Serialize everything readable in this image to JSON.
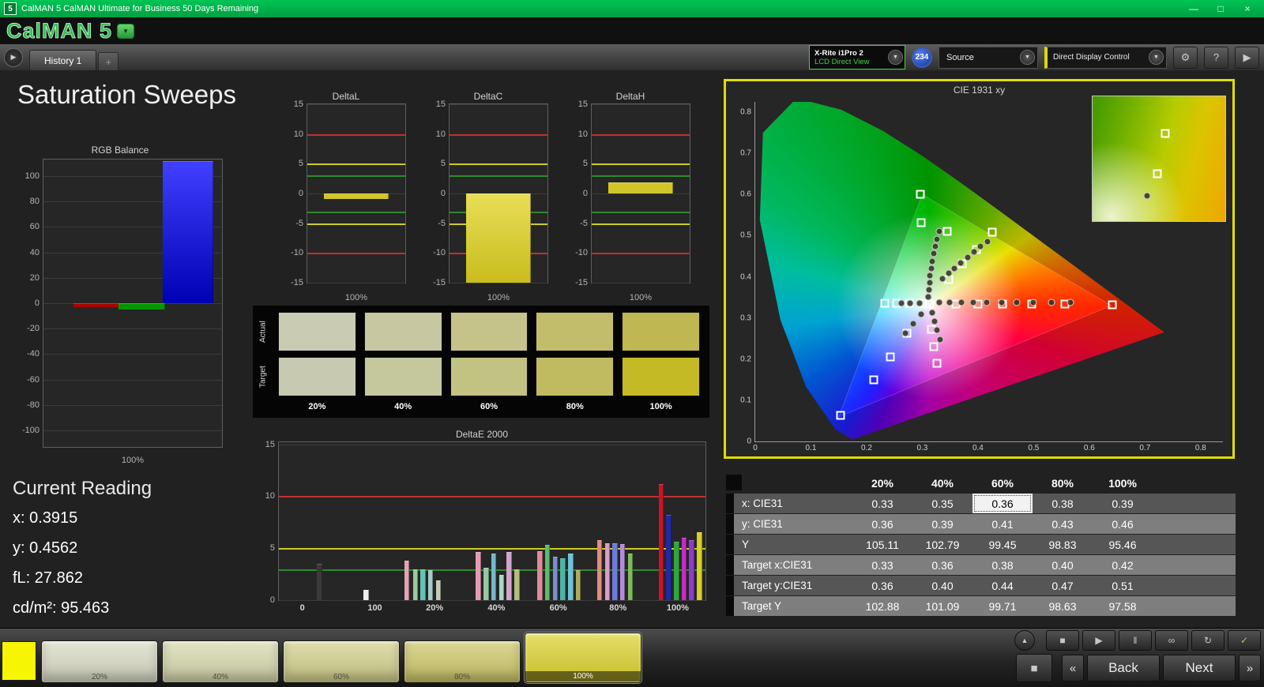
{
  "titlebar": {
    "icon": "5",
    "title": "CalMAN 5 CalMAN Ultimate for Business 50 Days Remaining",
    "minimize": "—",
    "maximize": "□",
    "close": "×"
  },
  "logo": {
    "text": "CalMAN 5",
    "dropdown": "▼"
  },
  "tabbar": {
    "nav_play": "▶",
    "history_tab": "History 1",
    "add_tab": "+",
    "meter": {
      "line1": "X-Rite i1Pro 2",
      "line2": "LCD Direct View",
      "arrow": "▼"
    },
    "badge": "234",
    "source": {
      "label": "Source",
      "arrow": "▼"
    },
    "display_control": {
      "label": "Direct Display Control",
      "arrow": "▼"
    },
    "gear": "⚙",
    "help": "?",
    "advance": "▶"
  },
  "page_title": "Saturation Sweeps",
  "current_reading": {
    "title": "Current Reading",
    "lines": [
      "x: 0.3915",
      "y: 0.4562",
      "fL: 27.862",
      "cd/m²: 95.463"
    ]
  },
  "chart_data": {
    "rgb_balance": {
      "type": "bar",
      "title": "RGB Balance",
      "xlabel": "100%",
      "ylim": [
        -113,
        113
      ],
      "yticks": [
        100,
        80,
        60,
        40,
        20,
        0,
        -20,
        -40,
        -60,
        -80,
        -100
      ],
      "bars": [
        {
          "name": "red",
          "x": 0.3,
          "w": 0.26,
          "v": -3,
          "c": "#aa0000"
        },
        {
          "name": "green",
          "x": 0.55,
          "w": 0.26,
          "v": -5,
          "c": "#009600"
        },
        {
          "name": "blue",
          "x": 0.81,
          "w": 0.28,
          "v": 112,
          "c": "linear-gradient(180deg,#4040ff,#0000b4)"
        }
      ]
    },
    "delta_l": {
      "type": "bar",
      "title": "DeltaL",
      "xlabel": "100%",
      "ylim": [
        -15,
        15
      ],
      "yticks": [
        15,
        10,
        5,
        0,
        -5,
        -10,
        -15
      ],
      "reflines": [
        {
          "v": 10,
          "c": "#c03030"
        },
        {
          "v": 5,
          "c": "#cccc22"
        },
        {
          "v": 3,
          "c": "#2e8b2e"
        },
        {
          "v": -3,
          "c": "#2e8b2e"
        },
        {
          "v": -5,
          "c": "#cccc22"
        },
        {
          "v": -10,
          "c": "#c03030"
        }
      ],
      "bars": [
        {
          "x": 0.5,
          "w": 0.66,
          "v": -0.9,
          "c": "#d2c52a"
        }
      ]
    },
    "delta_c": {
      "type": "bar",
      "title": "DeltaC",
      "xlabel": "100%",
      "ylim": [
        -15,
        15
      ],
      "yticks": [
        15,
        10,
        5,
        0,
        -5,
        -10,
        -15
      ],
      "reflines": [
        {
          "v": 10,
          "c": "#c03030"
        },
        {
          "v": 5,
          "c": "#cccc22"
        },
        {
          "v": 3,
          "c": "#2e8b2e"
        },
        {
          "v": -3,
          "c": "#2e8b2e"
        },
        {
          "v": -5,
          "c": "#cccc22"
        },
        {
          "v": -10,
          "c": "#c03030"
        }
      ],
      "bars": [
        {
          "x": 0.5,
          "w": 0.66,
          "v": -15,
          "c": "linear-gradient(180deg,#e8de58,#c9bd1d)"
        }
      ]
    },
    "delta_h": {
      "type": "bar",
      "title": "DeltaH",
      "xlabel": "100%",
      "ylim": [
        -15,
        15
      ],
      "yticks": [
        15,
        10,
        5,
        0,
        -5,
        -10,
        -15
      ],
      "reflines": [
        {
          "v": 10,
          "c": "#c03030"
        },
        {
          "v": 5,
          "c": "#cccc22"
        },
        {
          "v": 3,
          "c": "#2e8b2e"
        },
        {
          "v": -3,
          "c": "#2e8b2e"
        },
        {
          "v": -5,
          "c": "#cccc22"
        },
        {
          "v": -10,
          "c": "#c03030"
        }
      ],
      "bars": [
        {
          "x": 0.5,
          "w": 0.66,
          "v": 1.8,
          "c": "#d2c52a"
        }
      ]
    },
    "delta_e2000": {
      "type": "bar",
      "title": "DeltaE 2000",
      "ylim": [
        0,
        15.2
      ],
      "yticks": [
        0,
        5,
        10,
        15
      ],
      "reflines": [
        {
          "v": 10,
          "c": "#c03030"
        },
        {
          "v": 5,
          "c": "#cccc22"
        },
        {
          "v": 3,
          "c": "#2e8b2e"
        }
      ],
      "xticks": [
        {
          "t": "0",
          "x": 0.055
        },
        {
          "t": "100",
          "x": 0.225
        },
        {
          "t": "20%",
          "x": 0.365
        },
        {
          "t": "40%",
          "x": 0.51
        },
        {
          "t": "60%",
          "x": 0.655
        },
        {
          "t": "80%",
          "x": 0.795
        },
        {
          "t": "100%",
          "x": 0.935
        }
      ],
      "bar_w": 0.012,
      "bars": [
        {
          "x": 0.095,
          "v": 3.5,
          "c": "#3a3a3a"
        },
        {
          "x": 0.205,
          "v": 1.0,
          "c": "#eeeeee"
        },
        {
          "x": 0.3,
          "v": 3.8,
          "c": "#e4a4b4"
        },
        {
          "x": 0.32,
          "v": 3.0,
          "c": "#9cc89c"
        },
        {
          "x": 0.338,
          "v": 3.0,
          "c": "#64c4b4"
        },
        {
          "x": 0.356,
          "v": 2.9,
          "c": "#a4ccc4"
        },
        {
          "x": 0.374,
          "v": 1.9,
          "c": "#c4ccb4"
        },
        {
          "x": 0.468,
          "v": 4.6,
          "c": "#e49cb4"
        },
        {
          "x": 0.486,
          "v": 3.1,
          "c": "#94c8a4"
        },
        {
          "x": 0.504,
          "v": 4.5,
          "c": "#74b8cc"
        },
        {
          "x": 0.522,
          "v": 2.4,
          "c": "#acd8c4"
        },
        {
          "x": 0.54,
          "v": 4.6,
          "c": "#d4a4cc"
        },
        {
          "x": 0.558,
          "v": 3.0,
          "c": "#b4bc7c"
        },
        {
          "x": 0.612,
          "v": 4.7,
          "c": "#dc8c9c"
        },
        {
          "x": 0.63,
          "v": 5.3,
          "c": "#5cbc6c"
        },
        {
          "x": 0.648,
          "v": 4.2,
          "c": "#7c8ccc"
        },
        {
          "x": 0.666,
          "v": 4.0,
          "c": "#4cb4a4"
        },
        {
          "x": 0.684,
          "v": 4.5,
          "c": "#6cc4d4"
        },
        {
          "x": 0.702,
          "v": 2.9,
          "c": "#acac5c"
        },
        {
          "x": 0.752,
          "v": 5.8,
          "c": "#e48c7c"
        },
        {
          "x": 0.77,
          "v": 5.5,
          "c": "#dc9cc4"
        },
        {
          "x": 0.788,
          "v": 5.5,
          "c": "#6c7cdc"
        },
        {
          "x": 0.806,
          "v": 5.4,
          "c": "#b48cdc"
        },
        {
          "x": 0.824,
          "v": 4.5,
          "c": "#7cbc5c"
        },
        {
          "x": 0.896,
          "v": 11.2,
          "c": "#cc1424"
        },
        {
          "x": 0.914,
          "v": 8.2,
          "c": "#2428a4"
        },
        {
          "x": 0.932,
          "v": 5.6,
          "c": "#2ca83c"
        },
        {
          "x": 0.95,
          "v": 6.0,
          "c": "#c42cc4"
        },
        {
          "x": 0.968,
          "v": 5.8,
          "c": "#8c3ccc"
        },
        {
          "x": 0.986,
          "v": 6.5,
          "c": "#d8d024"
        }
      ]
    },
    "cie": {
      "type": "scatter",
      "title": "CIE 1931 xy",
      "xmax": 0.84,
      "ymax": 0.825,
      "xticks": [
        "0",
        "0.1",
        "0.2",
        "0.3",
        "0.4",
        "0.5",
        "0.6",
        "0.7",
        "0.8"
      ],
      "yticks": [
        "0",
        "0.1",
        "0.2",
        "0.3",
        "0.4",
        "0.5",
        "0.6",
        "0.7",
        "0.8"
      ],
      "white_point": [
        0.3127,
        0.329
      ],
      "srgb_triangle": [
        [
          0.64,
          0.33
        ],
        [
          0.3,
          0.6
        ],
        [
          0.15,
          0.06
        ]
      ],
      "targets": [
        [
          0.232,
          0.335
        ],
        [
          0.254,
          0.335
        ],
        [
          0.277,
          0.335
        ],
        [
          0.3,
          0.335
        ],
        [
          0.36,
          0.334
        ],
        [
          0.4,
          0.334
        ],
        [
          0.444,
          0.334
        ],
        [
          0.497,
          0.334
        ],
        [
          0.556,
          0.334
        ],
        [
          0.642,
          0.331
        ],
        [
          0.296,
          0.601
        ],
        [
          0.298,
          0.532
        ],
        [
          0.313,
          0.334
        ],
        [
          0.345,
          0.51
        ],
        [
          0.426,
          0.509
        ],
        [
          0.398,
          0.466
        ],
        [
          0.372,
          0.431
        ],
        [
          0.347,
          0.393
        ],
        [
          0.316,
          0.272
        ],
        [
          0.321,
          0.231
        ],
        [
          0.327,
          0.189
        ],
        [
          0.272,
          0.262
        ],
        [
          0.243,
          0.205
        ],
        [
          0.213,
          0.15
        ],
        [
          0.153,
          0.064
        ]
      ],
      "measured": [
        [
          0.311,
          0.352
        ],
        [
          0.312,
          0.368
        ],
        [
          0.313,
          0.385
        ],
        [
          0.314,
          0.402
        ],
        [
          0.316,
          0.42
        ],
        [
          0.318,
          0.438
        ],
        [
          0.32,
          0.456
        ],
        [
          0.323,
          0.474
        ],
        [
          0.327,
          0.492
        ],
        [
          0.331,
          0.51
        ],
        [
          0.336,
          0.396
        ],
        [
          0.347,
          0.408
        ],
        [
          0.358,
          0.421
        ],
        [
          0.369,
          0.434
        ],
        [
          0.381,
          0.447
        ],
        [
          0.393,
          0.46
        ],
        [
          0.405,
          0.473
        ],
        [
          0.417,
          0.486
        ],
        [
          0.33,
          0.337
        ],
        [
          0.349,
          0.337
        ],
        [
          0.37,
          0.337
        ],
        [
          0.392,
          0.337
        ],
        [
          0.416,
          0.337
        ],
        [
          0.442,
          0.337
        ],
        [
          0.47,
          0.337
        ],
        [
          0.5,
          0.337
        ],
        [
          0.532,
          0.337
        ],
        [
          0.566,
          0.337
        ],
        [
          0.295,
          0.336
        ],
        [
          0.278,
          0.336
        ],
        [
          0.262,
          0.336
        ],
        [
          0.318,
          0.312
        ],
        [
          0.322,
          0.292
        ],
        [
          0.327,
          0.27
        ],
        [
          0.332,
          0.247
        ],
        [
          0.298,
          0.308
        ],
        [
          0.284,
          0.286
        ],
        [
          0.27,
          0.262
        ]
      ],
      "inset": {
        "squares": [
          [
            55,
            30
          ],
          [
            49,
            62
          ]
        ],
        "circles": [
          [
            41,
            80
          ]
        ]
      }
    }
  },
  "swatch_grid": {
    "row_labels": [
      "Actual",
      "Target"
    ],
    "cols": [
      "20%",
      "40%",
      "60%",
      "80%",
      "100%"
    ],
    "actual": [
      "#c9cbb3",
      "#c7c8a2",
      "#c5c389",
      "#c2bd6b",
      "#bfb751"
    ],
    "target": [
      "#c7c9b0",
      "#c5c79c",
      "#c2c283",
      "#c0bb60",
      "#c3ba25"
    ]
  },
  "table": {
    "headers": [
      "",
      "20%",
      "40%",
      "60%",
      "80%",
      "100%"
    ],
    "rows": [
      {
        "label": "x: CIE31",
        "values": [
          "0.33",
          "0.35",
          "0.36",
          "0.38",
          "0.39"
        ]
      },
      {
        "label": "y: CIE31",
        "values": [
          "0.36",
          "0.39",
          "0.41",
          "0.43",
          "0.46"
        ]
      },
      {
        "label": "Y",
        "values": [
          "105.11",
          "102.79",
          "99.45",
          "98.83",
          "95.46"
        ]
      },
      {
        "label": "Target x:CIE31",
        "values": [
          "0.33",
          "0.36",
          "0.38",
          "0.40",
          "0.42"
        ]
      },
      {
        "label": "Target y:CIE31",
        "values": [
          "0.36",
          "0.40",
          "0.44",
          "0.47",
          "0.51"
        ]
      },
      {
        "label": "Target Y",
        "values": [
          "102.88",
          "101.09",
          "99.71",
          "98.63",
          "97.58"
        ]
      }
    ],
    "selected": {
      "row": 0,
      "col": 2
    }
  },
  "bottom": {
    "color_chip": "#f6f600",
    "swatches": [
      {
        "label": "20%",
        "c": "#d9dbc5"
      },
      {
        "label": "40%",
        "c": "#d7d9ad"
      },
      {
        "label": "60%",
        "c": "#d3d18d"
      },
      {
        "label": "80%",
        "c": "#cec86a"
      },
      {
        "label": "100%",
        "c": "#dcd22f",
        "selected": true
      }
    ],
    "controls_top": [
      {
        "name": "collapse",
        "glyph": "▲",
        "round": true
      },
      {
        "name": "stop",
        "glyph": "■"
      },
      {
        "name": "play",
        "glyph": "▶"
      },
      {
        "name": "pause",
        "glyph": "‖"
      },
      {
        "name": "continuous",
        "glyph": "∞"
      },
      {
        "name": "refresh",
        "glyph": "↻"
      },
      {
        "name": "confirm",
        "glyph": "✓",
        "color": "#9fd25f"
      }
    ],
    "nav": {
      "big": "■",
      "prev": "«",
      "back": "Back",
      "next": "Next",
      "fwd": "»"
    }
  }
}
